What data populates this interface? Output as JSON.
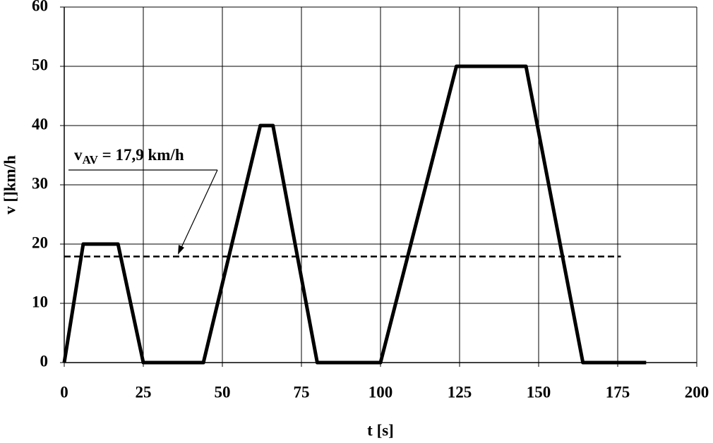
{
  "chart_data": {
    "type": "line",
    "xlabel": "t [s]",
    "ylabel": "v []km/h",
    "series": [
      {
        "color": "#000000",
        "x": [
          0,
          6,
          17,
          25,
          44,
          62,
          66,
          80,
          100,
          124,
          146,
          164,
          184
        ],
        "values": [
          0,
          20,
          20,
          0,
          0,
          40,
          40,
          0,
          0,
          50,
          50,
          0,
          0
        ]
      },
      {
        "color": "#000000",
        "dashed": true,
        "x": [
          0,
          176
        ],
        "values": [
          17.9,
          17.9
        ]
      }
    ],
    "annotation": {
      "symbol": "v",
      "subscript": "AV",
      "text": " = 17,9 km/h"
    },
    "xlim": [
      0,
      200
    ],
    "xticks": [
      0,
      25,
      50,
      75,
      100,
      125,
      150,
      175,
      200
    ],
    "ylim": [
      0,
      60
    ],
    "yticks": [
      0,
      10,
      20,
      30,
      40,
      50,
      60
    ],
    "grid": true
  }
}
